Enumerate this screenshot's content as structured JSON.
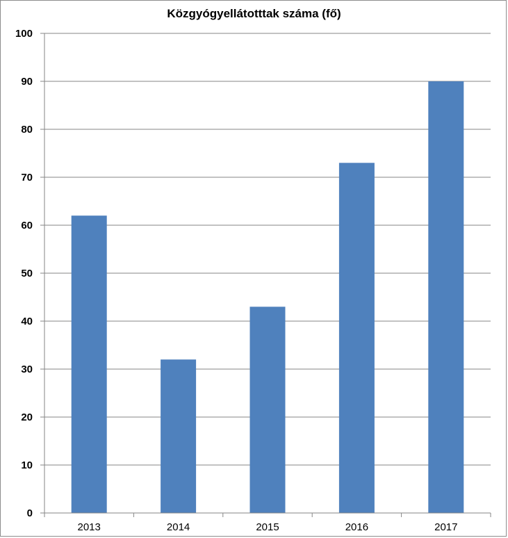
{
  "chart_data": {
    "type": "bar",
    "title": "Közgyógyellátotttak száma (fő)",
    "categories": [
      "2013",
      "2014",
      "2015",
      "2016",
      "2017"
    ],
    "values": [
      62,
      32,
      43,
      73,
      90
    ],
    "ylim": [
      0,
      100
    ],
    "yticks": [
      0,
      10,
      20,
      30,
      40,
      50,
      60,
      70,
      80,
      90,
      100
    ],
    "grid": true,
    "legend": "none",
    "colors": {
      "bar": "#4F81BD",
      "grid": "#868686",
      "axis": "#868686"
    }
  }
}
